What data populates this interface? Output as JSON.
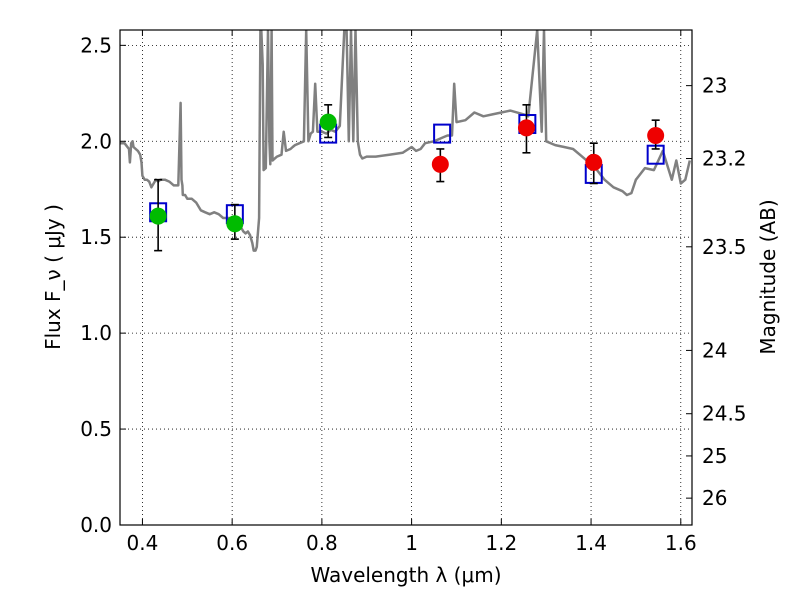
{
  "chart_data": {
    "type": "scatter",
    "xlabel": "Wavelength  λ (μm)",
    "ylabel": "Flux  F_ν  ( μJy )",
    "y2label": "Magnitude (AB)",
    "xlim": [
      0.35,
      1.625
    ],
    "ylim": [
      0.0,
      2.58
    ],
    "grid": true,
    "x_ticks": [
      0.4,
      0.6,
      0.8,
      1.0,
      1.2,
      1.4,
      1.6
    ],
    "x_tick_labels": [
      "0.4",
      "0.6",
      "0.8",
      "1",
      "1.2",
      "1.4",
      "1.6"
    ],
    "y_ticks": [
      0.0,
      0.5,
      1.0,
      1.5,
      2.0,
      2.5
    ],
    "y_tick_labels": [
      "0.0",
      "0.5",
      "1.0",
      "1.5",
      "2.0",
      "2.5"
    ],
    "y2_ticks": [
      {
        "label": "23",
        "flux": 2.29
      },
      {
        "label": "23.2",
        "flux": 1.91
      },
      {
        "label": "23.5",
        "flux": 1.45
      },
      {
        "label": "24",
        "flux": 0.91
      },
      {
        "label": "24.5",
        "flux": 0.58
      },
      {
        "label": "25",
        "flux": 0.36
      },
      {
        "label": "26",
        "flux": 0.14
      }
    ],
    "series": [
      {
        "style": "green-circle",
        "color": "#00bb00",
        "points": [
          {
            "x": 0.435,
            "y": 1.61,
            "err_low": 0.18,
            "err_high": 0.19
          },
          {
            "x": 0.606,
            "y": 1.57,
            "err_low": 0.08,
            "err_high": 0.1
          },
          {
            "x": 0.814,
            "y": 2.1,
            "err_low": 0.08,
            "err_high": 0.09
          }
        ]
      },
      {
        "style": "red-circle",
        "color": "#ee0000",
        "points": [
          {
            "x": 1.064,
            "y": 1.88,
            "err_low": 0.09,
            "err_high": 0.08
          },
          {
            "x": 1.256,
            "y": 2.07,
            "err_low": 0.13,
            "err_high": 0.12
          },
          {
            "x": 1.406,
            "y": 1.89,
            "err_low": 0.11,
            "err_high": 0.1
          },
          {
            "x": 1.544,
            "y": 2.03,
            "err_low": 0.07,
            "err_high": 0.08
          }
        ]
      },
      {
        "style": "blue-open-square",
        "color": "#0000cc",
        "points": [
          {
            "x": 0.435,
            "y": 1.63
          },
          {
            "x": 0.606,
            "y": 1.62
          },
          {
            "x": 0.814,
            "y": 2.04
          },
          {
            "x": 1.068,
            "y": 2.04
          },
          {
            "x": 1.258,
            "y": 2.09
          },
          {
            "x": 1.406,
            "y": 1.83
          },
          {
            "x": 1.544,
            "y": 1.93
          }
        ]
      },
      {
        "style": "model-spectrum",
        "color": "#808080",
        "x": [
          0.35,
          0.36,
          0.37,
          0.372,
          0.375,
          0.378,
          0.38,
          0.39,
          0.395,
          0.398,
          0.4,
          0.405,
          0.41,
          0.415,
          0.42,
          0.425,
          0.43,
          0.435,
          0.44,
          0.45,
          0.46,
          0.47,
          0.48,
          0.485,
          0.487,
          0.489,
          0.49,
          0.495,
          0.5,
          0.51,
          0.52,
          0.53,
          0.54,
          0.55,
          0.56,
          0.57,
          0.58,
          0.59,
          0.6,
          0.61,
          0.62,
          0.625,
          0.63,
          0.635,
          0.64,
          0.645,
          0.648,
          0.652,
          0.655,
          0.66,
          0.663,
          0.665,
          0.668,
          0.67,
          0.675,
          0.68,
          0.683,
          0.685,
          0.688,
          0.69,
          0.7,
          0.71,
          0.715,
          0.72,
          0.73,
          0.735,
          0.74,
          0.75,
          0.76,
          0.765,
          0.77,
          0.775,
          0.78,
          0.785,
          0.79,
          0.8,
          0.81,
          0.82,
          0.83,
          0.84,
          0.85,
          0.855,
          0.86,
          0.865,
          0.87,
          0.875,
          0.88,
          0.885,
          0.89,
          0.9,
          0.92,
          0.95,
          0.98,
          1.0,
          1.01,
          1.02,
          1.03,
          1.05,
          1.07,
          1.08,
          1.09,
          1.095,
          1.1,
          1.12,
          1.14,
          1.16,
          1.18,
          1.2,
          1.22,
          1.25,
          1.26,
          1.28,
          1.29,
          1.295,
          1.3,
          1.32,
          1.34,
          1.36,
          1.38,
          1.4,
          1.41,
          1.43,
          1.45,
          1.47,
          1.48,
          1.49,
          1.5,
          1.52,
          1.54,
          1.56,
          1.58,
          1.59,
          1.6,
          1.61,
          1.62
        ],
        "y": [
          1.99,
          1.99,
          1.96,
          1.89,
          1.99,
          2.0,
          1.97,
          1.95,
          1.93,
          1.89,
          1.82,
          1.8,
          1.8,
          1.79,
          1.76,
          1.78,
          1.8,
          1.79,
          1.8,
          1.8,
          1.79,
          1.77,
          1.77,
          2.2,
          1.8,
          1.77,
          1.72,
          1.72,
          1.7,
          1.7,
          1.68,
          1.64,
          1.63,
          1.62,
          1.63,
          1.62,
          1.6,
          1.6,
          1.6,
          1.58,
          1.55,
          1.53,
          1.52,
          1.53,
          1.51,
          1.47,
          1.43,
          1.43,
          1.45,
          1.6,
          2.58,
          2.58,
          2.4,
          1.85,
          1.86,
          2.58,
          2.0,
          1.88,
          2.58,
          1.9,
          1.92,
          1.93,
          2.05,
          1.95,
          1.96,
          1.97,
          1.98,
          1.99,
          2.0,
          2.58,
          2.0,
          2.04,
          2.05,
          2.3,
          2.05,
          2.05,
          2.04,
          2.06,
          2.05,
          2.08,
          2.58,
          2.58,
          2.0,
          2.58,
          2.0,
          2.58,
          2.0,
          1.93,
          1.91,
          1.92,
          1.92,
          1.93,
          1.94,
          1.97,
          1.95,
          1.96,
          1.99,
          2.0,
          2.02,
          2.03,
          2.03,
          2.3,
          2.1,
          2.11,
          2.15,
          2.13,
          2.14,
          2.15,
          2.16,
          2.14,
          2.13,
          2.58,
          2.05,
          2.58,
          2.0,
          1.98,
          1.97,
          1.96,
          1.92,
          1.88,
          1.86,
          1.8,
          1.76,
          1.74,
          1.72,
          1.73,
          1.8,
          1.86,
          1.85,
          1.95,
          1.8,
          1.9,
          1.78,
          1.8,
          1.9
        ]
      }
    ]
  }
}
